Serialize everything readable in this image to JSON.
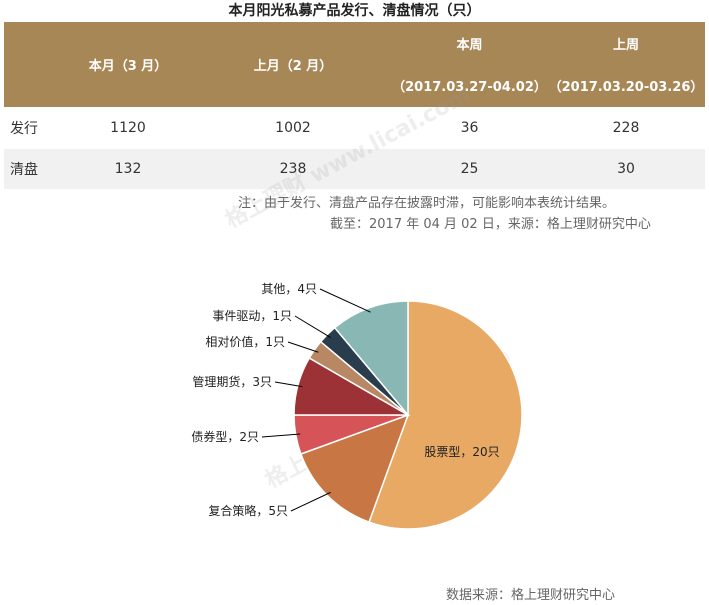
{
  "page": {
    "title": "本月阳光私募产品发行、清盘情况（只）",
    "note": "注：由于发行、清盘产品存在披露时滞，可能影响本表统计结果。",
    "cutoff": "截至：2017 年 04 月 02 日，来源：格上理财研究中心",
    "source": "数据来源：格上理财研究中心",
    "watermark": "格上理财  www.licai.com"
  },
  "table": {
    "headers": {
      "this_month": "本月（3 月）",
      "last_month": "上月（2 月）",
      "this_week": "本周",
      "this_week_range": "（2017.03.27-04.02）",
      "last_week": "上周",
      "last_week_range": "（2017.03.20-03.26）"
    },
    "rows": [
      {
        "label": "发行",
        "this_month": "1120",
        "last_month": "1002",
        "this_week": "36",
        "last_week": "228"
      },
      {
        "label": "清盘",
        "this_month": "132",
        "last_month": "238",
        "this_week": "25",
        "last_week": "30"
      }
    ]
  },
  "chart_data": {
    "type": "pie",
    "title": "",
    "categories": [
      "股票型",
      "复合策略",
      "债券型",
      "管理期货",
      "相对价值",
      "事件驱动",
      "其他"
    ],
    "values": [
      20,
      5,
      2,
      3,
      1,
      1,
      4
    ],
    "labels": [
      "股票型，20只",
      "复合策略，5只",
      "债券型，2只",
      "管理期货，3只",
      "相对价值，1只",
      "事件驱动，1只",
      "其他，4只"
    ],
    "colors": [
      "#e7a964",
      "#c87643",
      "#d65457",
      "#9c3235",
      "#b78863",
      "#2a3d4c",
      "#89b8b4"
    ],
    "legend": "none"
  }
}
